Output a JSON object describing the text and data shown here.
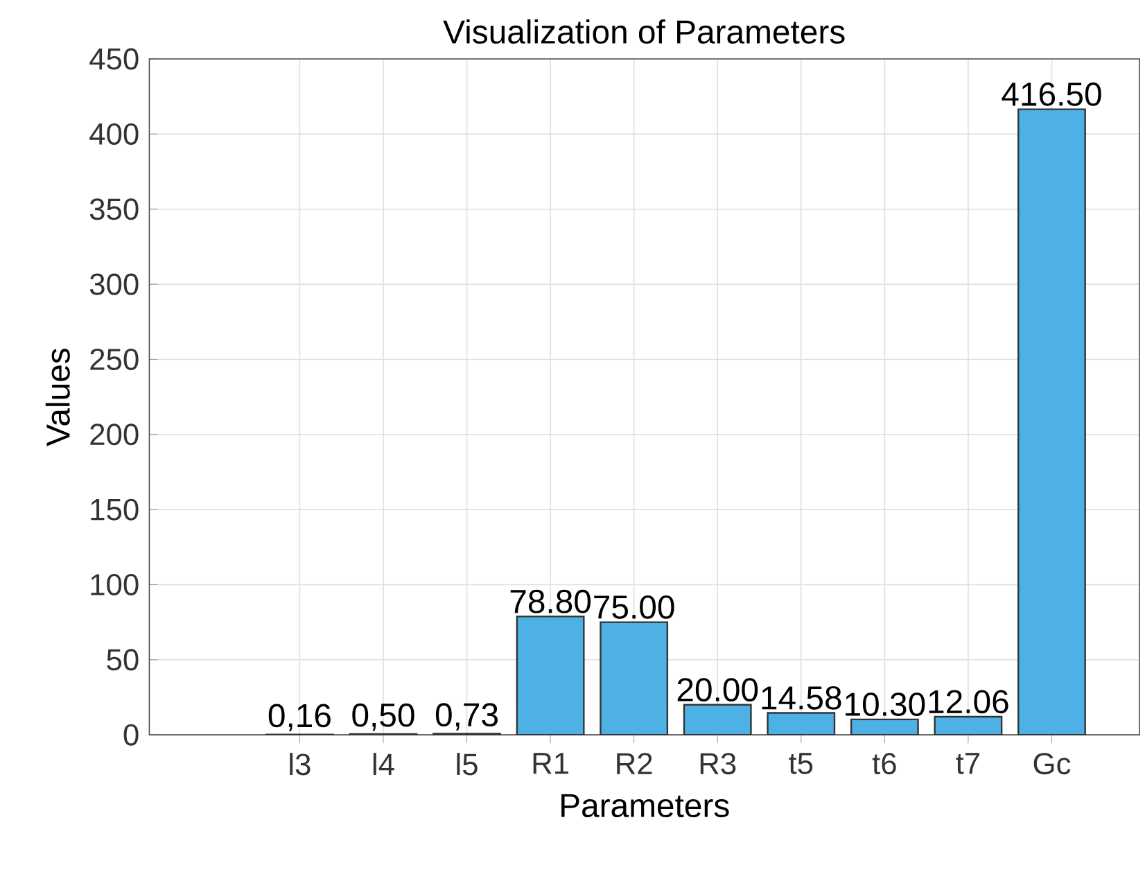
{
  "chart_data": {
    "type": "bar",
    "title": "Visualization of Parameters",
    "xlabel": "Parameters",
    "ylabel": "Values",
    "categories": [
      "l3",
      "l4",
      "l5",
      "R1",
      "R2",
      "R3",
      "t5",
      "t6",
      "t7",
      "Gc"
    ],
    "values": [
      0.16,
      0.5,
      0.73,
      78.8,
      75.0,
      20.0,
      14.58,
      10.3,
      12.06,
      416.5
    ],
    "value_labels": [
      "0,16",
      "0,50",
      "0,73",
      "78.80",
      "75.00",
      "20.00",
      "14.58",
      "10.30",
      "12.06",
      "416.50"
    ],
    "color": "#4db1e6",
    "ylim": [
      0,
      450
    ],
    "yticks": [
      0,
      50,
      100,
      150,
      200,
      250,
      300,
      350,
      400,
      450
    ],
    "grid": true
  }
}
